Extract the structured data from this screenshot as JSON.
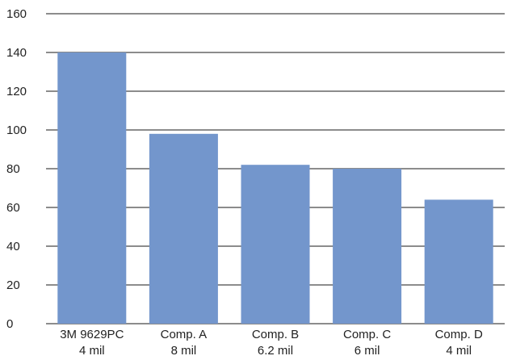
{
  "chart_data": {
    "type": "bar",
    "title": "",
    "xlabel": "",
    "ylabel": "",
    "categories": [
      [
        "3M 9629PC",
        "4 mil"
      ],
      [
        "Comp. A",
        "8 mil"
      ],
      [
        "Comp. B",
        "6.2 mil"
      ],
      [
        "Comp. C",
        "6 mil"
      ],
      [
        "Comp. D",
        "4 mil"
      ]
    ],
    "values": [
      140,
      98,
      82,
      80,
      64
    ],
    "ylim": [
      0,
      160
    ],
    "yticks": [
      "0",
      "20",
      "40",
      "60",
      "80",
      "100",
      "120",
      "140",
      "160"
    ],
    "grid": true,
    "bar_color": "#7396CC",
    "grid_color": "#1a1a1a"
  }
}
